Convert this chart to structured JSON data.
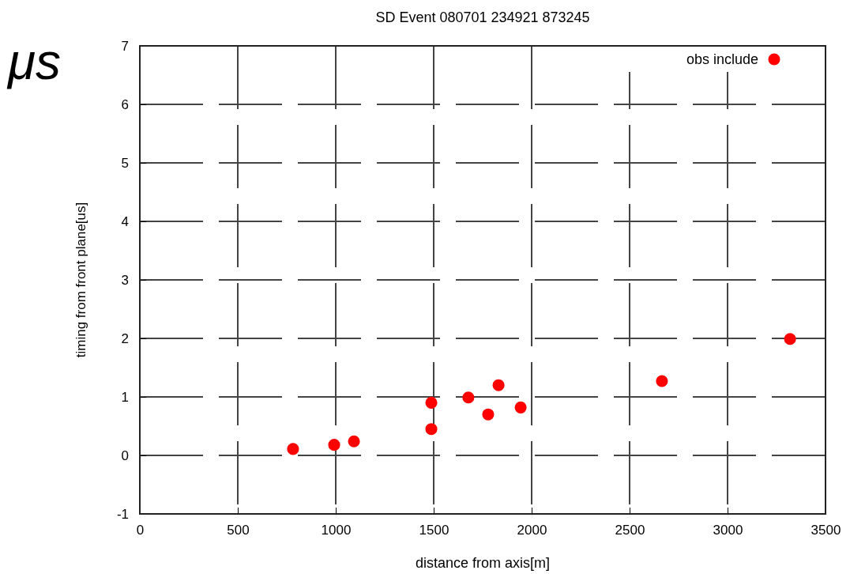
{
  "chart_data": {
    "type": "scatter",
    "title": "SD Event 080701 234921 873245",
    "xlabel": "distance from axis[m]",
    "ylabel": "timing from front plane[us]",
    "annotations": [
      "μs"
    ],
    "series": [
      {
        "name": "obs include",
        "color": "#ff0000",
        "x": [
          782,
          992,
          1093,
          1488,
          1488,
          1677,
          1778,
          1831,
          1944,
          2665,
          3319
        ],
        "values": [
          0.11,
          0.18,
          0.24,
          0.9,
          0.45,
          0.99,
          0.7,
          1.2,
          0.82,
          1.27,
          1.99
        ]
      }
    ],
    "xlim": [
      0,
      3500
    ],
    "xticks": [
      0,
      500,
      1000,
      1500,
      2000,
      2500,
      3000,
      3500
    ],
    "ylim": [
      -1,
      7
    ],
    "yticks": [
      -1,
      0,
      1,
      2,
      3,
      4,
      5,
      6,
      7
    ],
    "grid": true,
    "legend": "top right",
    "marker": "circle"
  }
}
